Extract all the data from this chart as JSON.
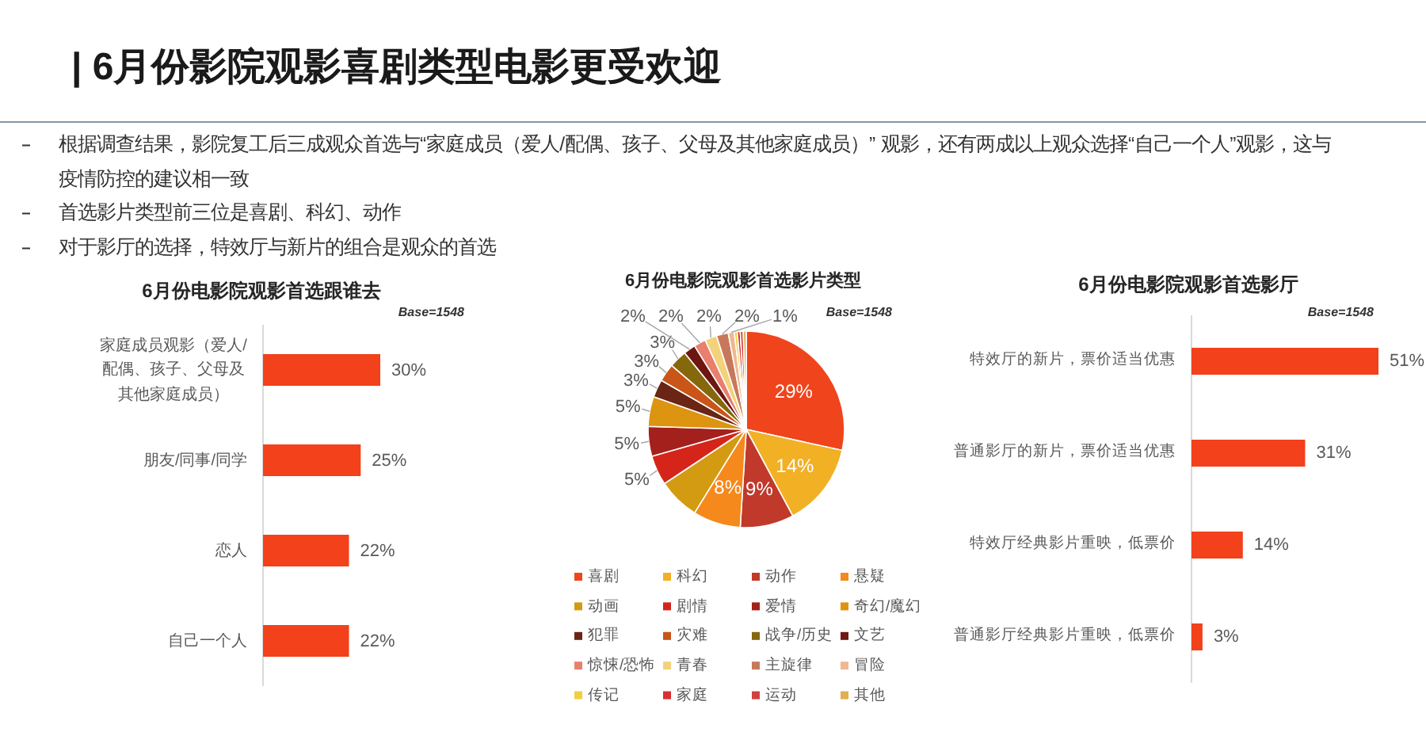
{
  "chart_data": [
    {
      "type": "other",
      "title": "| 6月份影院观影喜剧类型电影更受欢迎",
      "annotations": [
        "根据调查结果，影院复工后三成观众首选与“家庭成员（爱人/配偶、孩子、父母及其他家庭成员）” 观影，还有两成以上观众选择“自己一个人”观影，这与疫情防控的建议相一致",
        "首选影片类型前三位是喜剧、科幻、动作",
        "对于影厅的选择，特效厅与新片的组合是观众的首选"
      ]
    },
    {
      "type": "bar",
      "orientation": "horizontal",
      "title": "6月份电影院观影首选跟谁去",
      "annotations": [
        "Base=1548"
      ],
      "categories": [
        "家庭成员观影（爱人/配偶、孩子、父母及其他家庭成员）",
        "朋友/同事/同学",
        "恋人",
        "自己一个人"
      ],
      "values": [
        30,
        25,
        22,
        22
      ],
      "value_labels": [
        "30%",
        "25%",
        "22%",
        "22%"
      ],
      "color": "#f2411b"
    },
    {
      "type": "pie",
      "title": "6月份电影院观影首选影片类型",
      "annotations": [
        "Base=1548"
      ],
      "categories": [
        "喜剧",
        "科幻",
        "动作",
        "悬疑",
        "动画",
        "剧情",
        "爱情",
        "奇幻/魔幻",
        "犯罪",
        "灾难",
        "战争/历史",
        "文艺",
        "惊悚/恐怖",
        "青春",
        "主旋律",
        "冒险",
        "传记",
        "家庭",
        "运动",
        "其他"
      ],
      "values": [
        29,
        14,
        9,
        8,
        7,
        5,
        5,
        5,
        3,
        3,
        3,
        2,
        2,
        2,
        2,
        1,
        0.5,
        0.5,
        0.5,
        0.5
      ],
      "value_labels": [
        "29%",
        "14%",
        "9%",
        "8%",
        null,
        "5%",
        "5%",
        "5%",
        "3%",
        "3%",
        "3%",
        "2%",
        "2%",
        "2%",
        "2%",
        "1%",
        null,
        null,
        null,
        null
      ],
      "colors": [
        "#f0441c",
        "#f2b024",
        "#c0392b",
        "#f5891c",
        "#d39b12",
        "#d5251b",
        "#a3201c",
        "#dc9411",
        "#6a2514",
        "#c95518",
        "#86680c",
        "#6e1612",
        "#e8806e",
        "#f2d27a",
        "#c8785a",
        "#f0b890",
        "#f0d040",
        "#d83030",
        "#d04040",
        "#e0b050"
      ],
      "legend": "bottom"
    },
    {
      "type": "bar",
      "orientation": "horizontal",
      "title": "6月份电影院观影首选影厅",
      "annotations": [
        "Base=1548"
      ],
      "categories": [
        "特效厅的新片，票价适当优惠",
        "普通影厅的新片，票价适当优惠",
        "特效厅经典影片重映，低票价",
        "普通影厅经典影片重映，低票价"
      ],
      "values": [
        51,
        31,
        14,
        3
      ],
      "value_labels": [
        "51%",
        "31%",
        "14%",
        "3%"
      ],
      "color": "#f2411b"
    }
  ]
}
